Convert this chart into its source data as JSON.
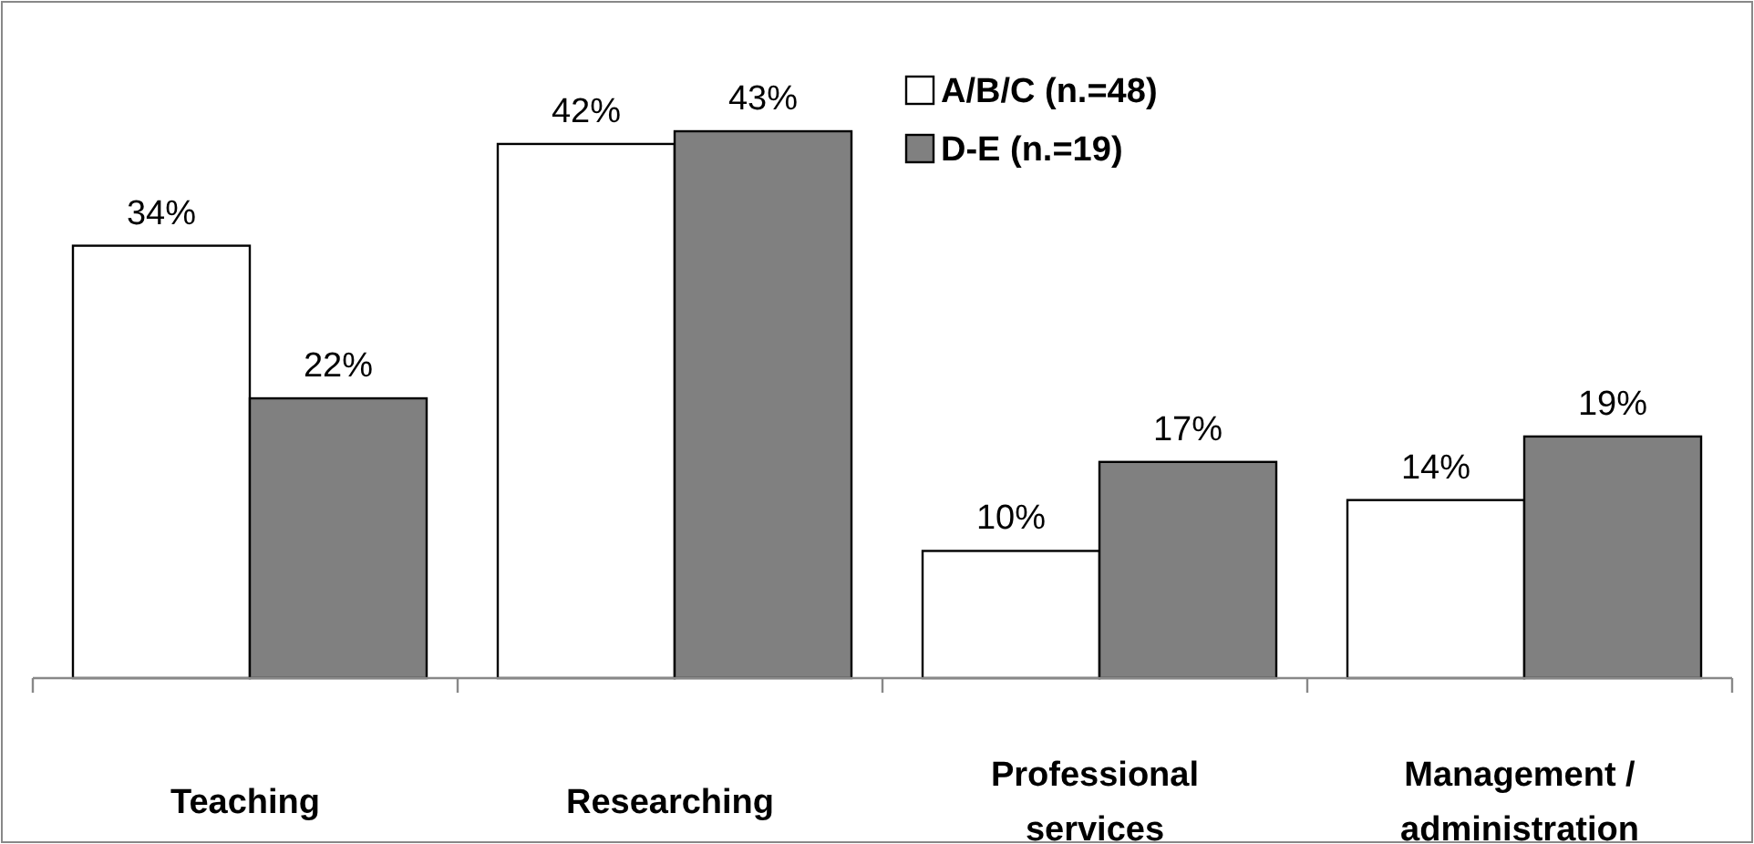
{
  "chart_data": {
    "type": "bar",
    "categories": [
      "Teaching",
      "Researching",
      "Professional services",
      "Management / administration"
    ],
    "series": [
      {
        "name": "A/B/C (n.=48)",
        "color": "#ffffff",
        "values": [
          34,
          42,
          10,
          14
        ],
        "value_labels": [
          "34%",
          "42%",
          "10%",
          "14%"
        ]
      },
      {
        "name": "D-E (n.=19)",
        "color": "#808080",
        "values": [
          22,
          43,
          17,
          19
        ],
        "value_labels": [
          "22%",
          "43%",
          "17%",
          "19%"
        ]
      }
    ],
    "legend": "top right"
  }
}
